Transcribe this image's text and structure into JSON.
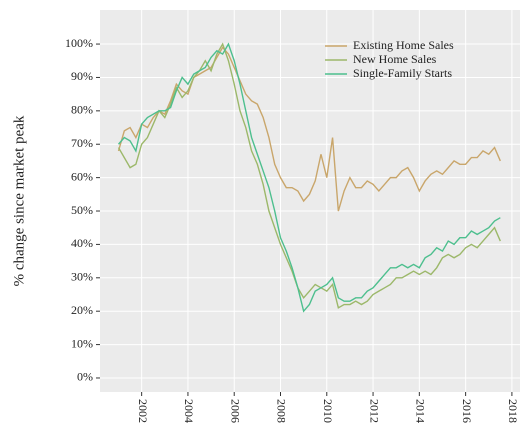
{
  "chart_data": {
    "type": "line",
    "y_label": "% change since market peak",
    "x": [
      2001.0,
      2001.25,
      2001.5,
      2001.75,
      2002.0,
      2002.25,
      2002.5,
      2002.75,
      2003.0,
      2003.25,
      2003.5,
      2003.75,
      2004.0,
      2004.25,
      2004.5,
      2004.75,
      2005.0,
      2005.25,
      2005.5,
      2005.75,
      2006.0,
      2006.25,
      2006.5,
      2006.75,
      2007.0,
      2007.25,
      2007.5,
      2007.75,
      2008.0,
      2008.25,
      2008.5,
      2008.75,
      2009.0,
      2009.25,
      2009.5,
      2009.75,
      2010.0,
      2010.25,
      2010.5,
      2010.75,
      2011.0,
      2011.25,
      2011.5,
      2011.75,
      2012.0,
      2012.25,
      2012.5,
      2012.75,
      2013.0,
      2013.25,
      2013.5,
      2013.75,
      2014.0,
      2014.25,
      2014.5,
      2014.75,
      2015.0,
      2015.25,
      2015.5,
      2015.75,
      2016.0,
      2016.25,
      2016.5,
      2016.75,
      2017.0,
      2017.25,
      2017.5
    ],
    "series": [
      {
        "name": "Existing Home Sales",
        "color": "#c9a66b",
        "values": [
          68,
          74,
          75,
          72,
          76,
          75,
          78,
          80,
          79,
          83,
          88,
          86,
          85,
          90,
          91,
          92,
          93,
          96,
          99,
          97,
          93,
          89,
          85,
          83,
          82,
          78,
          72,
          64,
          60,
          57,
          57,
          56,
          53,
          55,
          59,
          67,
          60,
          72,
          50,
          56,
          60,
          57,
          57,
          59,
          58,
          56,
          58,
          60,
          60,
          62,
          63,
          60,
          56,
          59,
          61,
          62,
          61,
          63,
          65,
          64,
          64,
          66,
          66,
          68,
          67,
          69,
          65
        ]
      },
      {
        "name": "New Home Sales",
        "color": "#9cb86a",
        "values": [
          69,
          66,
          63,
          64,
          70,
          72,
          76,
          80,
          78,
          82,
          87,
          84,
          86,
          90,
          92,
          95,
          92,
          97,
          100,
          95,
          88,
          80,
          75,
          68,
          64,
          58,
          50,
          45,
          40,
          36,
          32,
          27,
          24,
          26,
          28,
          27,
          26,
          28,
          21,
          22,
          22,
          23,
          22,
          23,
          25,
          26,
          27,
          28,
          30,
          30,
          31,
          32,
          31,
          32,
          31,
          33,
          36,
          37,
          36,
          37,
          39,
          40,
          39,
          41,
          43,
          45,
          41
        ]
      },
      {
        "name": "Single-Family Starts",
        "color": "#4dbf8e",
        "values": [
          70,
          72,
          71,
          68,
          76,
          78,
          79,
          80,
          80,
          81,
          86,
          90,
          88,
          91,
          92,
          93,
          96,
          98,
          97,
          100,
          95,
          88,
          80,
          72,
          67,
          62,
          57,
          50,
          42,
          38,
          33,
          27,
          20,
          22,
          26,
          27,
          28,
          30,
          24,
          23,
          23,
          24,
          24,
          26,
          27,
          29,
          31,
          33,
          33,
          34,
          33,
          34,
          33,
          36,
          37,
          39,
          38,
          41,
          40,
          42,
          42,
          44,
          43,
          44,
          45,
          47,
          48
        ]
      }
    ],
    "xlim": [
      2000.2,
      2018.35
    ],
    "xticks": [
      2002,
      2004,
      2006,
      2008,
      2010,
      2012,
      2014,
      2016,
      2018
    ],
    "ylim": [
      -4.2,
      110.2
    ],
    "yticks": [
      {
        "value": 0,
        "label": "0%"
      },
      {
        "value": 10,
        "label": "10%"
      },
      {
        "value": 20,
        "label": "20%"
      },
      {
        "value": 30,
        "label": "30%"
      },
      {
        "value": 40,
        "label": "40%"
      },
      {
        "value": 50,
        "label": "50%"
      },
      {
        "value": 60,
        "label": "60%"
      },
      {
        "value": 70,
        "label": "70%"
      },
      {
        "value": 80,
        "label": "80%"
      },
      {
        "value": 90,
        "label": "90%"
      },
      {
        "value": 100,
        "label": "100%"
      }
    ],
    "grid": true,
    "legend": "top-right"
  }
}
